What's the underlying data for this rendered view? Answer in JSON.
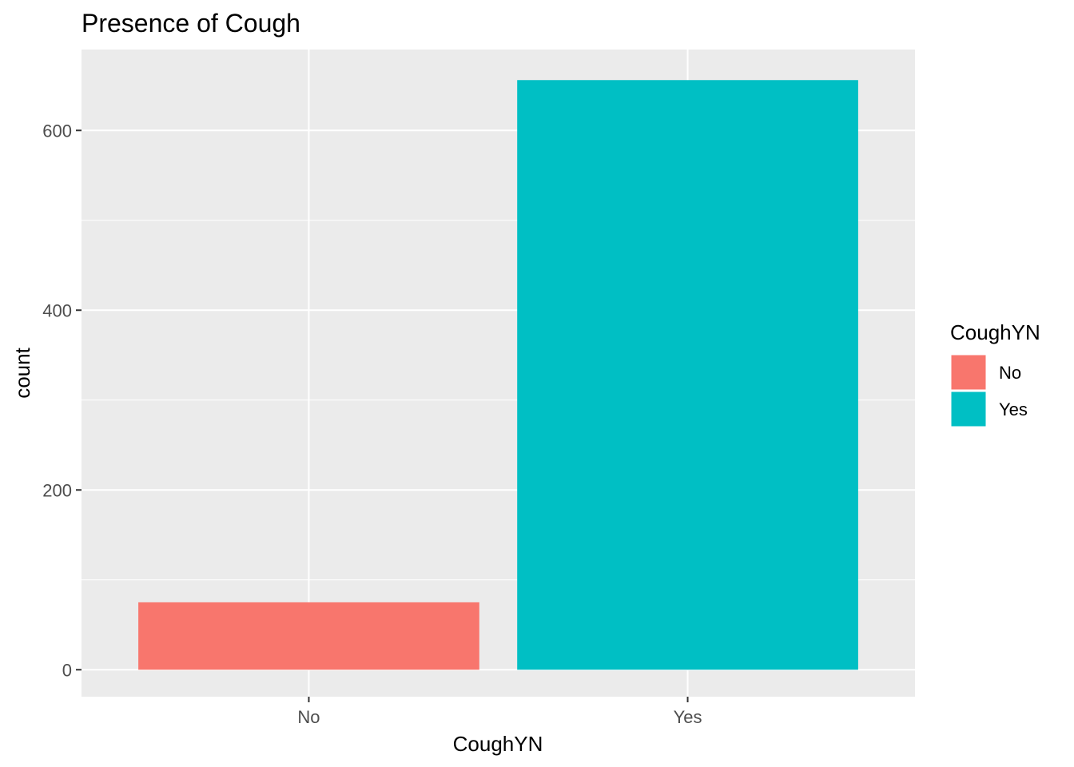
{
  "chart_data": {
    "type": "bar",
    "title": "Presence of Cough",
    "xlabel": "CoughYN",
    "ylabel": "count",
    "categories": [
      "No",
      "Yes"
    ],
    "values": [
      75,
      656
    ],
    "colors": [
      "#F8766D",
      "#00BFC4"
    ],
    "ylim": [
      -30,
      690
    ],
    "yticks": [
      0,
      200,
      400,
      600
    ],
    "ytick_labels": [
      "0",
      "200",
      "400",
      "600"
    ],
    "grid": true,
    "panel_background": "#EBEBEB",
    "legend": {
      "title": "CoughYN",
      "position": "right",
      "entries": [
        {
          "label": "No",
          "color": "#F8766D"
        },
        {
          "label": "Yes",
          "color": "#00BFC4"
        }
      ]
    }
  }
}
